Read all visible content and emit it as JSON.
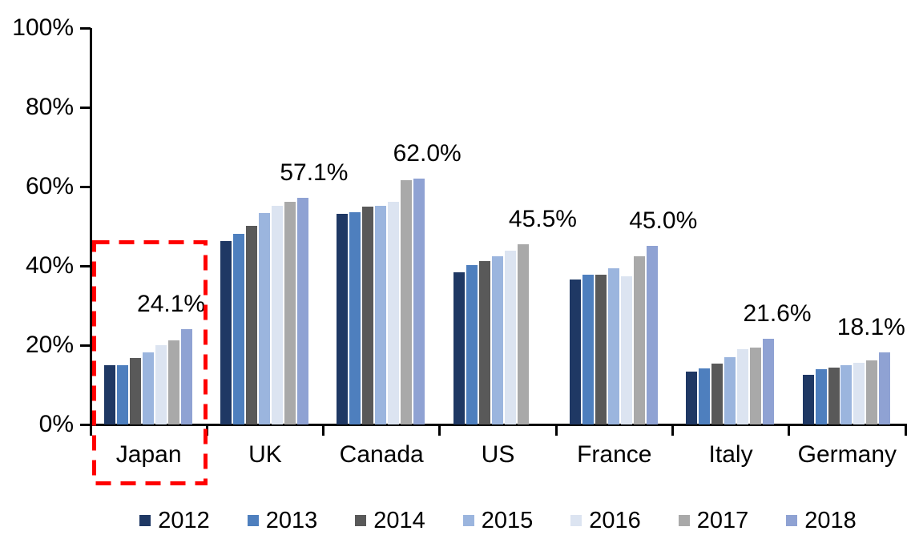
{
  "chart_data": {
    "type": "bar",
    "title": "",
    "xlabel": "",
    "ylabel": "",
    "categories": [
      "Japan",
      "UK",
      "Canada",
      "US",
      "France",
      "Italy",
      "Germany"
    ],
    "series": [
      {
        "name": "2012",
        "color": "#1F3864",
        "values": [
          14.9,
          46.3,
          53.1,
          38.3,
          36.5,
          13.3,
          12.5
        ]
      },
      {
        "name": "2013",
        "color": "#4E7FBE",
        "values": [
          15.0,
          48.0,
          53.6,
          40.2,
          37.8,
          14.2,
          14.0
        ]
      },
      {
        "name": "2014",
        "color": "#595959",
        "values": [
          16.7,
          50.1,
          55.0,
          41.3,
          37.8,
          15.4,
          14.4
        ]
      },
      {
        "name": "2015",
        "color": "#9BB5DE",
        "values": [
          18.1,
          53.3,
          55.1,
          42.5,
          39.4,
          17.0,
          14.9
        ]
      },
      {
        "name": "2016",
        "color": "#DCE4F1",
        "values": [
          20.0,
          55.1,
          56.2,
          43.8,
          37.4,
          19.0,
          15.5
        ]
      },
      {
        "name": "2017",
        "color": "#A9A9A9",
        "values": [
          21.2,
          56.1,
          61.6,
          45.5,
          42.5,
          19.3,
          16.1
        ]
      },
      {
        "name": "2018",
        "color": "#8FA2D3",
        "values": [
          24.1,
          57.1,
          62.0,
          null,
          45.0,
          21.6,
          18.1
        ]
      }
    ],
    "data_labels": [
      "24.1%",
      "57.1%",
      "62.0%",
      "45.5%",
      "45.0%",
      "21.6%",
      "18.1%"
    ],
    "y_ticks": [
      "0%",
      "20%",
      "40%",
      "60%",
      "80%",
      "100%"
    ],
    "ylim": [
      0,
      100
    ],
    "grid": false,
    "legend_position": "bottom",
    "axis_color": "#000000",
    "annotation": {
      "type": "dashed-rectangle",
      "highlighted_category": "Japan",
      "color": "#FF0000"
    }
  }
}
